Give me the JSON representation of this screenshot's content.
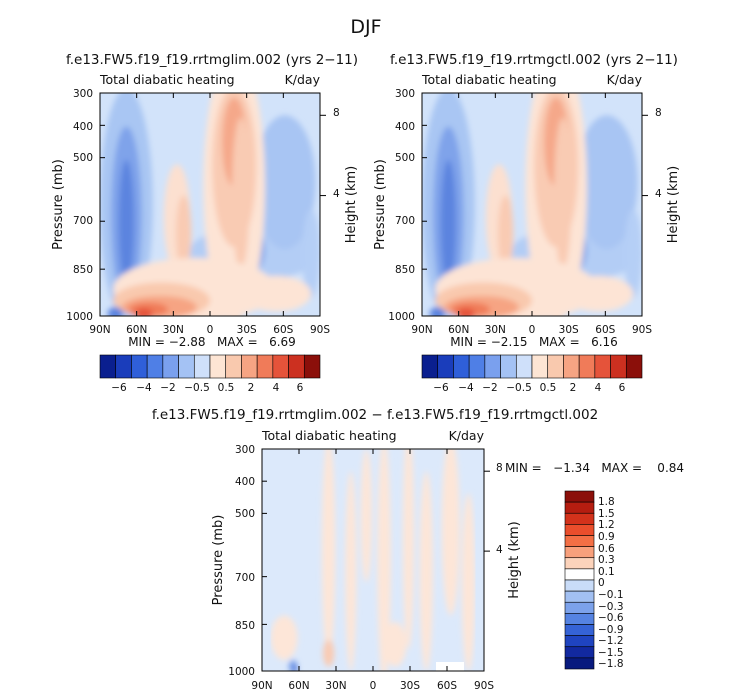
{
  "figure": {
    "season": "DJF",
    "diff_title": "f.e13.FW5.f19_f19.rrtmglim.002 − f.e13.FW5.f19_f19.rrtmgctl.002"
  },
  "chart_data": [
    {
      "type": "heatmap",
      "title": "f.e13.FW5.f19_f19.rrtmglim.002 (yrs 2−11)",
      "left_label": "Total diabatic heating",
      "right_label": "K/day",
      "xlabel": "",
      "ylabel": "Pressure (mb)",
      "ylabel_right": "Height (km)",
      "x_ticks": [
        "90N",
        "60N",
        "30N",
        "0",
        "30S",
        "60S",
        "90S"
      ],
      "y_ticks": [
        "300",
        "400",
        "500",
        "700",
        "850",
        "1000"
      ],
      "height_ticks": [
        "8",
        "4"
      ],
      "ylim": [
        1000,
        300
      ],
      "log_pressure": true,
      "min": -2.88,
      "max": 6.69,
      "stats_text": "MIN = −2.88   MAX =   6.69",
      "colorbar_labels": [
        "−6",
        "−4",
        "−2",
        "−0.5",
        "0.5",
        "2",
        "4",
        "6"
      ],
      "colorbar_colors": [
        "#0a1f8f",
        "#1a3dbb",
        "#2f5fd9",
        "#4f7fe6",
        "#7aa0ee",
        "#a4c2f4",
        "#cfe0fa",
        "#fde5d4",
        "#f9c9ae",
        "#f6a483",
        "#f07b59",
        "#e5533a",
        "#cc3020",
        "#8b0f0a"
      ]
    },
    {
      "type": "heatmap",
      "title": "f.e13.FW5.f19_f19.rrtmgctl.002 (yrs 2−11)",
      "left_label": "Total diabatic heating",
      "right_label": "K/day",
      "xlabel": "",
      "ylabel": "Pressure (mb)",
      "ylabel_right": "Height (km)",
      "x_ticks": [
        "90N",
        "60N",
        "30N",
        "0",
        "30S",
        "60S",
        "90S"
      ],
      "y_ticks": [
        "300",
        "400",
        "500",
        "700",
        "850",
        "1000"
      ],
      "height_ticks": [
        "8",
        "4"
      ],
      "ylim": [
        1000,
        300
      ],
      "log_pressure": true,
      "min": -2.15,
      "max": 6.16,
      "stats_text": "MIN = −2.15   MAX =   6.16",
      "colorbar_labels": [
        "−6",
        "−4",
        "−2",
        "−0.5",
        "0.5",
        "2",
        "4",
        "6"
      ],
      "colorbar_colors": [
        "#0a1f8f",
        "#1a3dbb",
        "#2f5fd9",
        "#4f7fe6",
        "#7aa0ee",
        "#a4c2f4",
        "#cfe0fa",
        "#fde5d4",
        "#f9c9ae",
        "#f6a483",
        "#f07b59",
        "#e5533a",
        "#cc3020",
        "#8b0f0a"
      ]
    },
    {
      "type": "heatmap",
      "title": "",
      "left_label": "Total diabatic heating",
      "right_label": "K/day",
      "xlabel": "",
      "ylabel": "Pressure (mb)",
      "ylabel_right": "Height (km)",
      "x_ticks": [
        "90N",
        "60N",
        "30N",
        "0",
        "30S",
        "60S",
        "90S"
      ],
      "y_ticks": [
        "300",
        "400",
        "500",
        "700",
        "850",
        "1000"
      ],
      "height_ticks": [
        "8",
        "4"
      ],
      "ylim": [
        1000,
        300
      ],
      "log_pressure": true,
      "min": -1.34,
      "max": 0.84,
      "stats_text": "MIN =   −1.34   MAX =    0.84",
      "colorbar_labels": [
        "1.8",
        "1.5",
        "1.2",
        "0.9",
        "0.6",
        "0.3",
        "0.1",
        "0",
        "−0.1",
        "−0.3",
        "−0.6",
        "−0.9",
        "−1.2",
        "−1.5",
        "−1.8"
      ],
      "colorbar_colors": [
        "#8b0f0a",
        "#b51d10",
        "#d3321b",
        "#ea4e2c",
        "#f36f45",
        "#f8a07c",
        "#fcd3bb",
        "#ffffff",
        "#c9dcf8",
        "#a2c0f2",
        "#7ca2eb",
        "#5583e2",
        "#3563d6",
        "#1f44c0",
        "#1229a0",
        "#081a7e"
      ]
    }
  ]
}
